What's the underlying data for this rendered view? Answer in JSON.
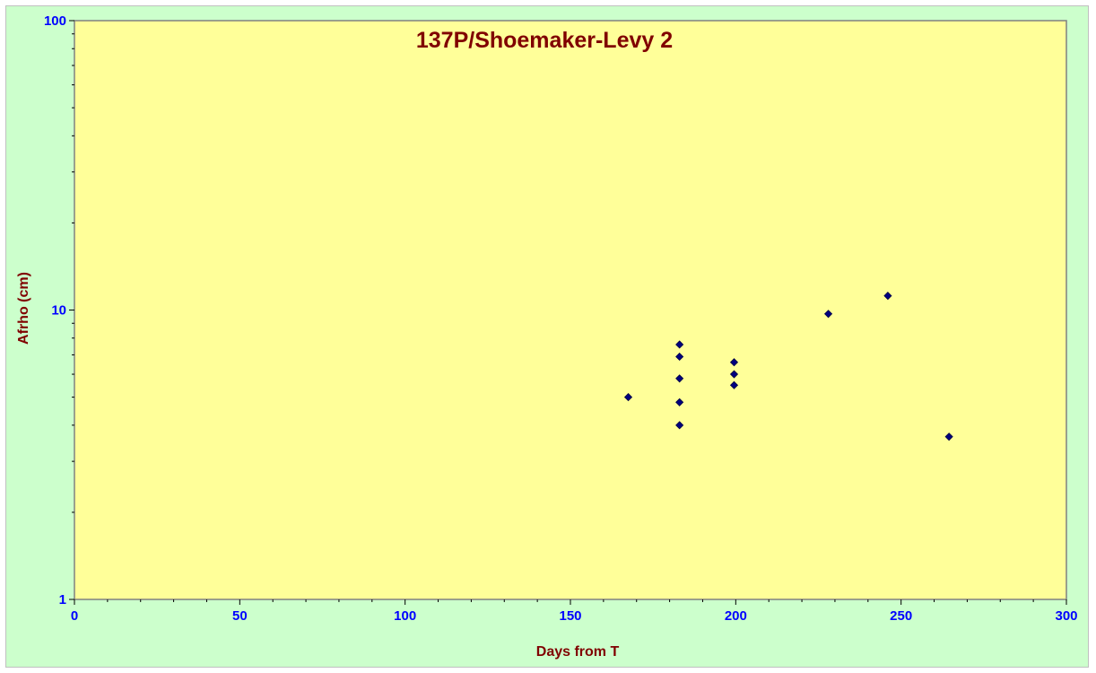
{
  "chart_data": {
    "type": "scatter",
    "title": "137P/Shoemaker-Levy 2",
    "xlabel": "Days from T",
    "ylabel": "Afrho (cm)",
    "xlim": [
      0,
      300
    ],
    "ylim": [
      1,
      100
    ],
    "yscale": "log",
    "x_ticks": [
      "0",
      "50",
      "100",
      "150",
      "200",
      "250",
      "300"
    ],
    "y_ticks": [
      "1",
      "10",
      "100"
    ],
    "grid": false,
    "series": [
      {
        "points": [
          {
            "x": 167.5,
            "y": 5.0
          },
          {
            "x": 183,
            "y": 7.6
          },
          {
            "x": 183,
            "y": 6.9
          },
          {
            "x": 183,
            "y": 5.8
          },
          {
            "x": 183,
            "y": 4.8
          },
          {
            "x": 183,
            "y": 4.0
          },
          {
            "x": 199.5,
            "y": 6.6
          },
          {
            "x": 199.5,
            "y": 6.0
          },
          {
            "x": 199.5,
            "y": 5.5
          },
          {
            "x": 228,
            "y": 9.7
          },
          {
            "x": 246,
            "y": 11.2
          },
          {
            "x": 264.5,
            "y": 3.65
          }
        ]
      }
    ]
  },
  "colors": {
    "background": "#ccffcc",
    "plot_area": "#ffff99",
    "marker": "#000080",
    "tick_labels": "#0000ff",
    "titles": "#800000"
  }
}
